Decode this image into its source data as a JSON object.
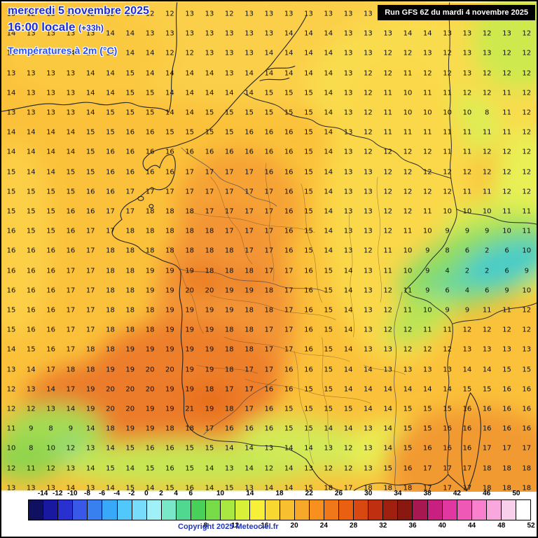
{
  "header": {
    "date_line": "mercredi 5 novembre 2025",
    "time_line": "16:00 locale",
    "time_offset": "(+33h)",
    "variable_line": "Températures à 2m (°C)",
    "run_info": "Run GFS 6Z du mardi 4 novembre 2025",
    "text_blue": "#1e2cd6",
    "variable_blue": "#2b50f0"
  },
  "footer": {
    "copyright": "Copyright 2025 Meteociel.fr",
    "copyright_color": "#2236c0"
  },
  "colorbar": {
    "unit": "°C",
    "min": -16,
    "max": 52,
    "step": 2,
    "cells": [
      "#101060",
      "#1818a0",
      "#2830d0",
      "#3858e8",
      "#3880f0",
      "#38a8f8",
      "#50c8fc",
      "#78dcfc",
      "#a0f0f8",
      "#78e8c8",
      "#50d890",
      "#48d058",
      "#78dc48",
      "#a8e840",
      "#d8f038",
      "#f8f038",
      "#f8d830",
      "#f8c030",
      "#f8a828",
      "#f89020",
      "#f07818",
      "#e86010",
      "#d84810",
      "#c03010",
      "#a02010",
      "#881810",
      "#a81850",
      "#c82080",
      "#e038a0",
      "#f058b8",
      "#f880cc",
      "#f8a8dc",
      "#f8d0ec",
      "#ffffff"
    ],
    "top_labels": [
      -14,
      -12,
      -10,
      -8,
      -6,
      -4,
      -2,
      0,
      2,
      4,
      6,
      10,
      14,
      18,
      22,
      26,
      30,
      34,
      38,
      42,
      46,
      50
    ],
    "bottom_labels": [
      8,
      12,
      16,
      20,
      24,
      28,
      32,
      36,
      40,
      44,
      48,
      52
    ]
  },
  "temperature_grid": {
    "rows": [
      [
        13,
        12,
        13,
        14,
        12,
        12,
        13,
        12,
        12,
        13,
        13,
        12,
        13,
        13,
        13,
        13,
        13,
        13,
        13,
        12,
        12,
        13,
        13,
        12,
        12,
        12,
        12
      ],
      [
        14,
        13,
        13,
        13,
        13,
        14,
        14,
        13,
        13,
        13,
        13,
        13,
        13,
        13,
        14,
        14,
        14,
        13,
        13,
        13,
        14,
        14,
        13,
        13,
        12,
        13,
        12
      ],
      [
        13,
        13,
        14,
        14,
        14,
        14,
        14,
        14,
        12,
        12,
        13,
        13,
        13,
        14,
        14,
        14,
        14,
        13,
        13,
        12,
        12,
        13,
        12,
        13,
        13,
        12,
        12
      ],
      [
        13,
        13,
        13,
        13,
        14,
        14,
        15,
        14,
        14,
        14,
        14,
        13,
        14,
        14,
        14,
        14,
        14,
        13,
        12,
        12,
        11,
        12,
        12,
        13,
        12,
        12,
        12
      ],
      [
        14,
        13,
        13,
        13,
        14,
        14,
        15,
        15,
        14,
        14,
        14,
        14,
        14,
        15,
        15,
        15,
        14,
        13,
        12,
        11,
        10,
        11,
        11,
        12,
        12,
        11,
        12
      ],
      [
        13,
        13,
        13,
        13,
        14,
        15,
        15,
        15,
        14,
        14,
        15,
        15,
        15,
        15,
        15,
        15,
        14,
        13,
        12,
        11,
        10,
        10,
        10,
        10,
        8,
        11,
        12
      ],
      [
        14,
        14,
        14,
        14,
        15,
        15,
        16,
        16,
        15,
        15,
        15,
        15,
        16,
        16,
        16,
        15,
        14,
        13,
        12,
        11,
        11,
        11,
        11,
        11,
        11,
        11,
        12
      ],
      [
        14,
        14,
        14,
        14,
        15,
        16,
        16,
        16,
        16,
        16,
        16,
        16,
        16,
        16,
        16,
        15,
        14,
        13,
        12,
        12,
        12,
        12,
        11,
        11,
        12,
        12,
        12
      ],
      [
        15,
        14,
        14,
        15,
        15,
        16,
        16,
        16,
        16,
        17,
        17,
        17,
        17,
        16,
        16,
        15,
        14,
        13,
        13,
        12,
        12,
        12,
        12,
        12,
        12,
        12,
        12
      ],
      [
        15,
        15,
        15,
        15,
        16,
        16,
        17,
        17,
        17,
        17,
        17,
        17,
        17,
        17,
        16,
        15,
        14,
        13,
        13,
        12,
        12,
        12,
        12,
        11,
        11,
        12,
        12
      ],
      [
        15,
        15,
        15,
        16,
        16,
        17,
        17,
        18,
        18,
        18,
        17,
        17,
        17,
        17,
        16,
        15,
        14,
        13,
        13,
        12,
        12,
        11,
        10,
        10,
        10,
        11,
        11
      ],
      [
        16,
        15,
        15,
        16,
        17,
        17,
        18,
        18,
        18,
        18,
        18,
        17,
        17,
        17,
        16,
        15,
        14,
        13,
        13,
        12,
        11,
        10,
        9,
        9,
        9,
        10,
        11
      ],
      [
        16,
        16,
        16,
        16,
        17,
        18,
        18,
        18,
        18,
        18,
        18,
        18,
        17,
        17,
        16,
        15,
        14,
        13,
        12,
        11,
        10,
        9,
        8,
        6,
        2,
        6,
        10
      ],
      [
        16,
        16,
        16,
        17,
        17,
        18,
        18,
        19,
        19,
        19,
        18,
        18,
        18,
        17,
        17,
        16,
        15,
        14,
        13,
        11,
        10,
        9,
        4,
        2,
        2,
        6,
        9
      ],
      [
        16,
        16,
        16,
        17,
        17,
        18,
        18,
        19,
        19,
        20,
        20,
        19,
        19,
        18,
        17,
        16,
        15,
        14,
        13,
        12,
        11,
        9,
        6,
        4,
        6,
        9,
        10
      ],
      [
        15,
        16,
        16,
        17,
        17,
        18,
        18,
        18,
        19,
        19,
        19,
        19,
        18,
        18,
        17,
        16,
        15,
        14,
        13,
        12,
        11,
        10,
        9,
        9,
        11,
        11,
        12
      ],
      [
        15,
        16,
        16,
        17,
        17,
        18,
        18,
        18,
        19,
        19,
        19,
        18,
        18,
        17,
        17,
        16,
        15,
        14,
        13,
        12,
        12,
        11,
        11,
        12,
        12,
        12,
        12
      ],
      [
        14,
        15,
        16,
        17,
        18,
        18,
        19,
        19,
        19,
        19,
        19,
        18,
        18,
        17,
        17,
        16,
        15,
        14,
        13,
        13,
        12,
        12,
        12,
        13,
        13,
        13,
        13
      ],
      [
        13,
        14,
        17,
        18,
        18,
        19,
        19,
        20,
        20,
        19,
        19,
        18,
        17,
        17,
        16,
        16,
        15,
        14,
        14,
        13,
        13,
        13,
        13,
        14,
        14,
        15,
        15
      ],
      [
        12,
        13,
        14,
        17,
        19,
        20,
        20,
        20,
        19,
        19,
        18,
        17,
        17,
        16,
        16,
        15,
        15,
        14,
        14,
        14,
        14,
        14,
        14,
        15,
        15,
        16,
        16
      ],
      [
        12,
        12,
        13,
        14,
        19,
        20,
        20,
        19,
        19,
        21,
        19,
        18,
        17,
        16,
        15,
        15,
        15,
        15,
        14,
        14,
        15,
        15,
        15,
        16,
        16,
        16,
        16
      ],
      [
        11,
        9,
        8,
        9,
        14,
        18,
        19,
        19,
        18,
        18,
        17,
        16,
        16,
        16,
        15,
        15,
        14,
        14,
        13,
        14,
        15,
        15,
        16,
        16,
        16,
        16,
        16
      ],
      [
        10,
        8,
        10,
        12,
        13,
        14,
        15,
        16,
        16,
        15,
        15,
        14,
        14,
        13,
        14,
        14,
        13,
        12,
        13,
        14,
        15,
        16,
        16,
        16,
        17,
        17,
        17
      ],
      [
        12,
        11,
        12,
        13,
        14,
        15,
        14,
        15,
        16,
        15,
        14,
        13,
        14,
        12,
        14,
        13,
        12,
        12,
        13,
        15,
        16,
        17,
        17,
        17,
        18,
        18,
        18
      ],
      [
        13,
        13,
        13,
        14,
        13,
        14,
        15,
        14,
        15,
        16,
        14,
        15,
        13,
        14,
        14,
        15,
        18,
        17,
        18,
        18,
        18,
        17,
        17,
        17,
        18,
        18,
        18
      ]
    ]
  }
}
